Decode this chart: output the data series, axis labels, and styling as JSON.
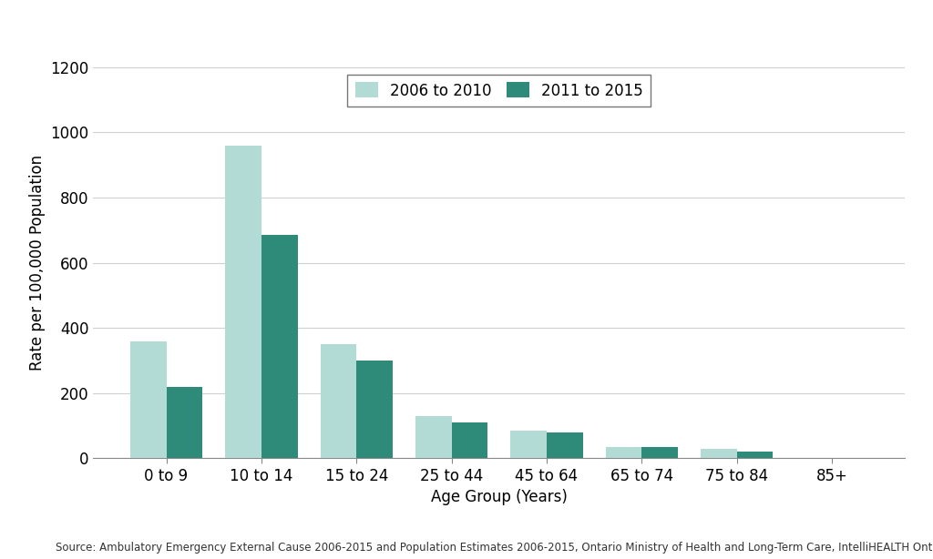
{
  "categories": [
    "0 to 9",
    "10 to 14",
    "15 to 24",
    "25 to 44",
    "45 to 64",
    "65 to 74",
    "75 to 84",
    "85+"
  ],
  "series_2006_2010": [
    360,
    960,
    350,
    130,
    85,
    35,
    30,
    0
  ],
  "series_2011_2015": [
    220,
    685,
    300,
    110,
    80,
    35,
    20,
    0
  ],
  "color_2006_2010": "#b2dbd6",
  "color_2011_2015": "#2e8b7a",
  "legend_labels": [
    "2006 to 2010",
    "2011 to 2015"
  ],
  "ylabel": "Rate per 100,000 Population",
  "xlabel": "Age Group (Years)",
  "ylim": [
    0,
    1200
  ],
  "yticks": [
    0,
    200,
    400,
    600,
    800,
    1000,
    1200
  ],
  "source_text": "Source: Ambulatory Emergency External Cause 2006-2015 and Population Estimates 2006-2015, Ontario Ministry of Health and Long-Term Care, IntelliHEALTH Ontario",
  "background_color": "#ffffff",
  "grid_color": "#d0d0d0",
  "bar_width": 0.38
}
